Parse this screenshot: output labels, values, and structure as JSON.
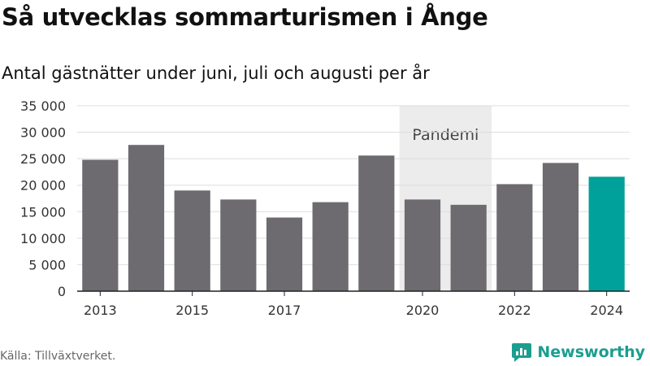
{
  "title": "Så utvecklas sommarturismen i Ånge",
  "subtitle": "Antal gästnätter under juni, juli och augusti per år",
  "source": "Källa: Tillväxtverket.",
  "brand": {
    "name": "Newsworthy",
    "icon": "newsworthy-logo-icon"
  },
  "colors": {
    "bar": "#6d6b70",
    "highlight": "#00a19a",
    "band": "#ececec",
    "grid": "#dddddd",
    "axis": "#222222"
  },
  "chart_data": {
    "type": "bar",
    "title": "",
    "xlabel": "",
    "ylabel": "",
    "categories": [
      "2013",
      "2014",
      "2015",
      "2016",
      "2017",
      "2018",
      "2019",
      "2020",
      "2021",
      "2022",
      "2023",
      "2024"
    ],
    "values": [
      24800,
      27600,
      19000,
      17300,
      13900,
      16800,
      25600,
      17300,
      16300,
      20200,
      24200,
      21600
    ],
    "highlight_index": 11,
    "ylim": [
      0,
      35000
    ],
    "yticks": [
      0,
      5000,
      10000,
      15000,
      20000,
      25000,
      30000,
      35000
    ],
    "ytick_labels": [
      "0",
      "5 000",
      "10 000",
      "15 000",
      "20 000",
      "25 000",
      "30 000",
      "35 000"
    ],
    "xtick_labels": [
      "2013",
      "2015",
      "2017",
      "2020",
      "2022",
      "2024"
    ],
    "grid": true,
    "annotation": {
      "label": "Pandemi",
      "from": "2020",
      "to": "2021"
    }
  }
}
